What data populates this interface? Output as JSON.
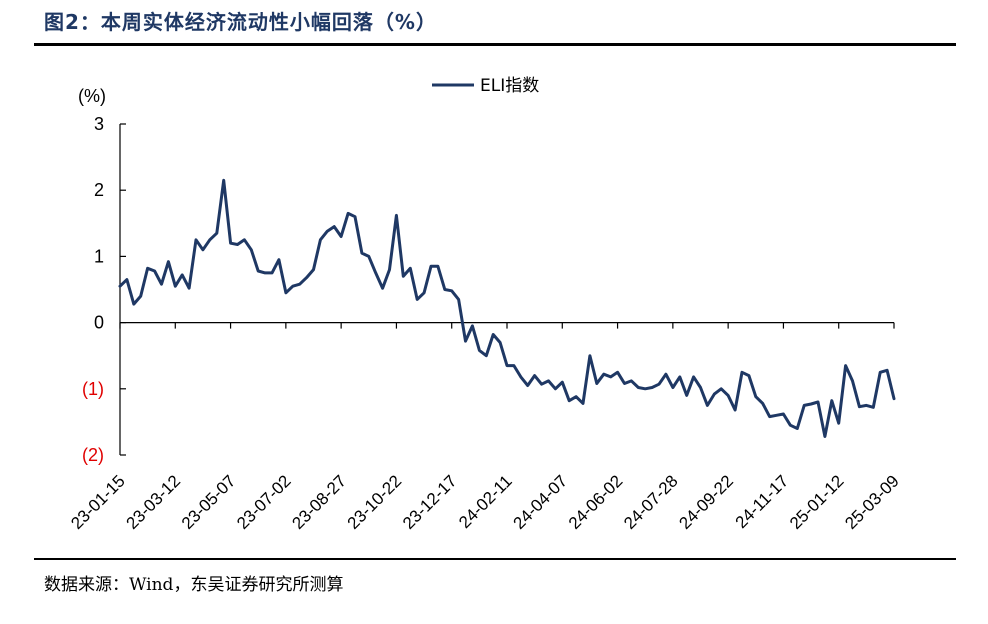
{
  "title": "图2：本周实体经济流动性小幅回落（%）",
  "source": "数据来源：Wind，东吴证券研究所测算",
  "chart_data": {
    "type": "line",
    "unit_label": "(%)",
    "ylim": [
      -2,
      3
    ],
    "y_ticks": [
      {
        "value": 3,
        "label": "3"
      },
      {
        "value": 2,
        "label": "2"
      },
      {
        "value": 1,
        "label": "1"
      },
      {
        "value": 0,
        "label": "0"
      },
      {
        "value": -1,
        "label": "(1)"
      },
      {
        "value": -2,
        "label": "(2)"
      }
    ],
    "negative_label_color": "#e00000",
    "x_tick_labels": [
      "23-01-15",
      "23-03-12",
      "23-05-07",
      "23-07-02",
      "23-08-27",
      "23-10-22",
      "23-12-17",
      "24-02-11",
      "24-04-07",
      "24-06-02",
      "24-07-28",
      "24-09-22",
      "24-11-17",
      "25-01-12",
      "25-03-09"
    ],
    "x_tick_every": 8,
    "legend": {
      "position": "top-center"
    },
    "series": [
      {
        "name": "ELI指数",
        "color": "#1f3864",
        "values": [
          0.55,
          0.65,
          0.28,
          0.4,
          0.82,
          0.78,
          0.58,
          0.92,
          0.55,
          0.72,
          0.52,
          1.25,
          1.1,
          1.25,
          1.35,
          2.15,
          1.2,
          1.18,
          1.25,
          1.1,
          0.78,
          0.75,
          0.75,
          0.95,
          0.45,
          0.55,
          0.58,
          0.68,
          0.8,
          1.25,
          1.38,
          1.45,
          1.3,
          1.65,
          1.6,
          1.05,
          1.0,
          0.75,
          0.52,
          0.8,
          1.62,
          0.7,
          0.82,
          0.35,
          0.45,
          0.85,
          0.85,
          0.5,
          0.48,
          0.35,
          -0.28,
          -0.05,
          -0.42,
          -0.5,
          -0.18,
          -0.3,
          -0.65,
          -0.65,
          -0.82,
          -0.95,
          -0.8,
          -0.93,
          -0.88,
          -1.0,
          -0.9,
          -1.18,
          -1.12,
          -1.22,
          -0.5,
          -0.92,
          -0.78,
          -0.82,
          -0.75,
          -0.92,
          -0.88,
          -0.98,
          -1.0,
          -0.98,
          -0.93,
          -0.78,
          -0.98,
          -0.82,
          -1.1,
          -0.82,
          -0.98,
          -1.25,
          -1.08,
          -1.0,
          -1.1,
          -1.32,
          -0.75,
          -0.8,
          -1.12,
          -1.22,
          -1.42,
          -1.4,
          -1.38,
          -1.55,
          -1.6,
          -1.25,
          -1.23,
          -1.2,
          -1.72,
          -1.18,
          -1.52,
          -0.65,
          -0.88,
          -1.27,
          -1.25,
          -1.28,
          -0.75,
          -0.72,
          -1.15
        ]
      }
    ]
  }
}
